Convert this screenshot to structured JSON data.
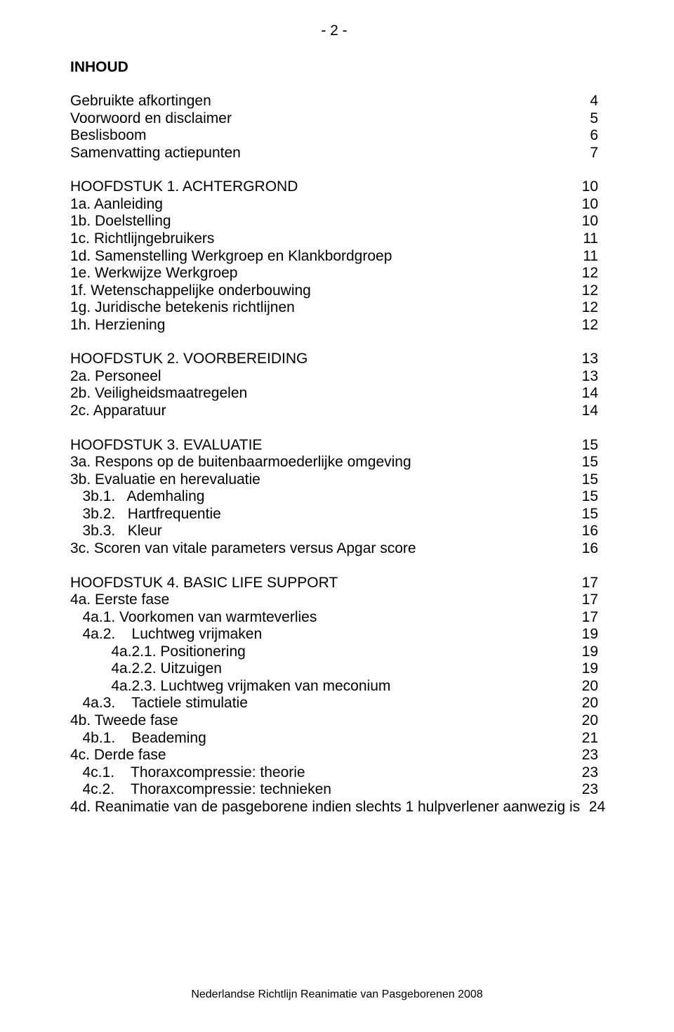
{
  "page_number_display": "- 2 -",
  "heading": "INHOUD",
  "intro": [
    {
      "label": "Gebruikte afkortingen",
      "page": "4"
    },
    {
      "label": "Voorwoord en disclaimer",
      "page": "5"
    },
    {
      "label": "Beslisboom",
      "page": "6"
    },
    {
      "label": "Samenvatting actiepunten",
      "page": "7"
    }
  ],
  "chapter1": [
    {
      "label": "HOOFDSTUK 1. ACHTERGROND",
      "page": "10"
    },
    {
      "label": "1a. Aanleiding",
      "page": "10"
    },
    {
      "label": "1b. Doelstelling",
      "page": "10"
    },
    {
      "label": "1c. Richtlijngebruikers",
      "page": "11"
    },
    {
      "label": "1d. Samenstelling Werkgroep en Klankbordgroep",
      "page": "11"
    },
    {
      "label": "1e. Werkwijze Werkgroep",
      "page": "12"
    },
    {
      "label": "1f. Wetenschappelijke onderbouwing",
      "page": "12"
    },
    {
      "label": "1g. Juridische betekenis richtlijnen",
      "page": "12"
    },
    {
      "label": "1h. Herziening",
      "page": "12"
    }
  ],
  "chapter2": [
    {
      "label": "HOOFDSTUK 2. VOORBEREIDING",
      "page": "13"
    },
    {
      "label": "2a. Personeel",
      "page": "13"
    },
    {
      "label": "2b. Veiligheidsmaatregelen",
      "page": "14"
    },
    {
      "label": "2c. Apparatuur",
      "page": "14"
    }
  ],
  "chapter3": [
    {
      "label": "HOOFDSTUK 3. EVALUATIE",
      "page": "15"
    },
    {
      "label": "3a. Respons op de buitenbaarmoederlijke omgeving",
      "page": "15"
    },
    {
      "label": "3b. Evaluatie en herevaluatie",
      "page": "15"
    },
    {
      "label": "   3b.1.   Ademhaling",
      "page": "15"
    },
    {
      "label": "   3b.2.   Hartfrequentie",
      "page": "15"
    },
    {
      "label": "   3b.3.   Kleur",
      "page": "16"
    },
    {
      "label": "3c. Scoren van vitale parameters versus Apgar score",
      "page": "16"
    }
  ],
  "chapter4": [
    {
      "label": "HOOFDSTUK 4. BASIC LIFE SUPPORT",
      "page": "17"
    },
    {
      "label": "4a. Eerste fase",
      "page": "17"
    },
    {
      "label": "   4a.1. Voorkomen van warmteverlies",
      "page": "17"
    },
    {
      "label": "   4a.2.    Luchtweg vrijmaken",
      "page": "19"
    },
    {
      "label": "          4a.2.1. Positionering",
      "page": "19"
    },
    {
      "label": "          4a.2.2. Uitzuigen",
      "page": "19"
    },
    {
      "label": "          4a.2.3. Luchtweg vrijmaken van meconium",
      "page": "20"
    },
    {
      "label": "   4a.3.    Tactiele stimulatie",
      "page": "20"
    },
    {
      "label": "4b. Tweede fase",
      "page": "20"
    },
    {
      "label": "   4b.1.    Beademing",
      "page": "21"
    },
    {
      "label": "4c. Derde fase",
      "page": "23"
    },
    {
      "label": "   4c.1.    Thoraxcompressie: theorie",
      "page": "23"
    },
    {
      "label": "   4c.2.    Thoraxcompressie: technieken",
      "page": "23"
    },
    {
      "label": "4d. Reanimatie van de pasgeborene indien slechts 1 hulpverlener aanwezig is",
      "page": "24"
    }
  ],
  "footer": "Nederlandse Richtlijn Reanimatie van Pasgeborenen 2008"
}
